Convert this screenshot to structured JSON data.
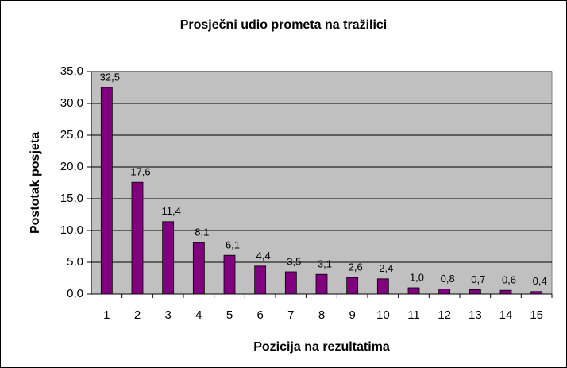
{
  "chart_data": {
    "type": "bar",
    "title": "Prosječni udio prometa na tražilici",
    "x_label": "Pozicija na rezultatima",
    "y_label": "Postotak posjeta",
    "categories": [
      "1",
      "2",
      "3",
      "4",
      "5",
      "6",
      "7",
      "8",
      "9",
      "10",
      "11",
      "12",
      "13",
      "14",
      "15"
    ],
    "values": [
      32.5,
      17.6,
      11.4,
      8.1,
      6.1,
      4.4,
      3.5,
      3.1,
      2.6,
      2.4,
      1.0,
      0.8,
      0.7,
      0.6,
      0.4
    ],
    "value_labels": [
      "32,5",
      "17,6",
      "11,4",
      "8,1",
      "6,1",
      "4,4",
      "3,5",
      "3,1",
      "2,6",
      "2,4",
      "1,0",
      "0,8",
      "0,7",
      "0,6",
      "0,4"
    ],
    "color": "#800080",
    "ylim": [
      0,
      35
    ],
    "yticks": [
      {
        "value": 0,
        "label": "0,0"
      },
      {
        "value": 5,
        "label": "5,0"
      },
      {
        "value": 10,
        "label": "10,0"
      },
      {
        "value": 15,
        "label": "15,0"
      },
      {
        "value": 20,
        "label": "20,0"
      },
      {
        "value": 25,
        "label": "25,0"
      },
      {
        "value": 30,
        "label": "30,0"
      },
      {
        "value": 35,
        "label": "35,0"
      }
    ],
    "grid": true
  }
}
